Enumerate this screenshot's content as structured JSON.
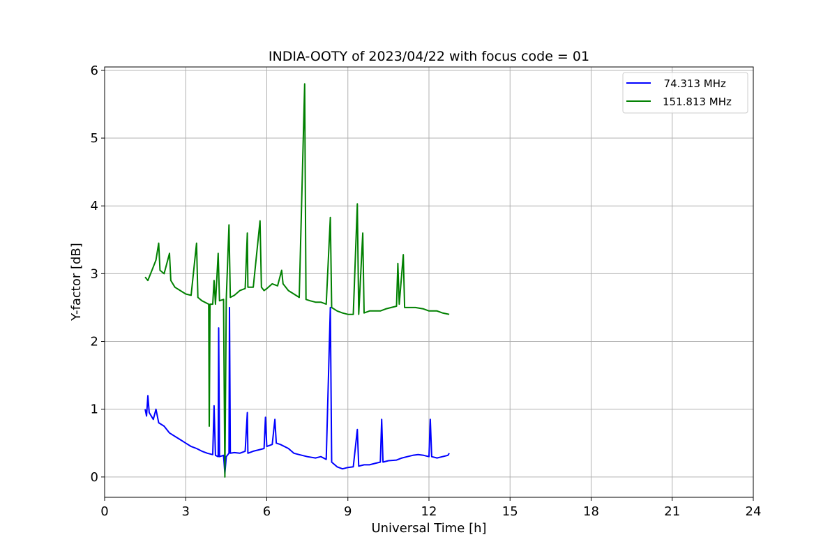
{
  "chart_data": {
    "type": "line",
    "title": "INDIA-OOTY of 2023/04/22 with focus code = 01",
    "xlabel": "Universal Time [h]",
    "ylabel": "Y-factor [dB]",
    "xlim": [
      0,
      24
    ],
    "ylim": [
      -0.3,
      6.05
    ],
    "xticks": [
      0,
      3,
      6,
      9,
      12,
      15,
      18,
      21,
      24
    ],
    "yticks": [
      0,
      1,
      2,
      3,
      4,
      5,
      6
    ],
    "grid": true,
    "legend_position": "top-right",
    "series": [
      {
        "name": "  74.313 MHz",
        "color": "#0000ff",
        "points": [
          [
            1.5,
            1.0
          ],
          [
            1.55,
            0.9
          ],
          [
            1.6,
            1.2
          ],
          [
            1.65,
            0.95
          ],
          [
            1.8,
            0.85
          ],
          [
            1.9,
            1.0
          ],
          [
            2.0,
            0.8
          ],
          [
            2.2,
            0.75
          ],
          [
            2.4,
            0.65
          ],
          [
            2.6,
            0.6
          ],
          [
            2.8,
            0.55
          ],
          [
            3.0,
            0.5
          ],
          [
            3.2,
            0.45
          ],
          [
            3.4,
            0.42
          ],
          [
            3.6,
            0.38
          ],
          [
            3.8,
            0.35
          ],
          [
            4.0,
            0.33
          ],
          [
            4.05,
            1.05
          ],
          [
            4.1,
            0.32
          ],
          [
            4.2,
            0.3
          ],
          [
            4.22,
            2.2
          ],
          [
            4.25,
            0.3
          ],
          [
            4.4,
            0.32
          ],
          [
            4.45,
            0.05
          ],
          [
            4.5,
            0.3
          ],
          [
            4.6,
            0.35
          ],
          [
            4.62,
            2.5
          ],
          [
            4.65,
            0.35
          ],
          [
            4.8,
            0.36
          ],
          [
            5.0,
            0.35
          ],
          [
            5.2,
            0.38
          ],
          [
            5.28,
            0.95
          ],
          [
            5.3,
            0.35
          ],
          [
            5.5,
            0.38
          ],
          [
            5.7,
            0.4
          ],
          [
            5.9,
            0.42
          ],
          [
            5.95,
            0.88
          ],
          [
            6.0,
            0.45
          ],
          [
            6.2,
            0.48
          ],
          [
            6.3,
            0.85
          ],
          [
            6.35,
            0.5
          ],
          [
            6.5,
            0.48
          ],
          [
            6.8,
            0.42
          ],
          [
            7.0,
            0.35
          ],
          [
            7.2,
            0.33
          ],
          [
            7.5,
            0.3
          ],
          [
            7.8,
            0.28
          ],
          [
            8.0,
            0.3
          ],
          [
            8.2,
            0.26
          ],
          [
            8.35,
            2.5
          ],
          [
            8.4,
            0.22
          ],
          [
            8.6,
            0.15
          ],
          [
            8.8,
            0.12
          ],
          [
            9.0,
            0.14
          ],
          [
            9.2,
            0.15
          ],
          [
            9.35,
            0.7
          ],
          [
            9.4,
            0.16
          ],
          [
            9.6,
            0.18
          ],
          [
            9.8,
            0.18
          ],
          [
            10.0,
            0.2
          ],
          [
            10.2,
            0.22
          ],
          [
            10.25,
            0.85
          ],
          [
            10.3,
            0.22
          ],
          [
            10.5,
            0.24
          ],
          [
            10.8,
            0.25
          ],
          [
            11.0,
            0.28
          ],
          [
            11.2,
            0.3
          ],
          [
            11.4,
            0.32
          ],
          [
            11.6,
            0.33
          ],
          [
            11.8,
            0.32
          ],
          [
            12.0,
            0.3
          ],
          [
            12.05,
            0.85
          ],
          [
            12.1,
            0.3
          ],
          [
            12.3,
            0.28
          ],
          [
            12.5,
            0.3
          ],
          [
            12.7,
            0.32
          ],
          [
            12.75,
            0.35
          ]
        ]
      },
      {
        "name": "151.813 MHz",
        "color": "#008000",
        "points": [
          [
            1.5,
            2.95
          ],
          [
            1.6,
            2.9
          ],
          [
            1.8,
            3.1
          ],
          [
            1.9,
            3.2
          ],
          [
            2.0,
            3.45
          ],
          [
            2.05,
            3.05
          ],
          [
            2.2,
            3.0
          ],
          [
            2.4,
            3.3
          ],
          [
            2.45,
            2.9
          ],
          [
            2.6,
            2.8
          ],
          [
            2.8,
            2.75
          ],
          [
            3.0,
            2.7
          ],
          [
            3.2,
            2.68
          ],
          [
            3.4,
            3.45
          ],
          [
            3.45,
            2.65
          ],
          [
            3.6,
            2.6
          ],
          [
            3.85,
            2.55
          ],
          [
            3.87,
            0.75
          ],
          [
            3.9,
            2.55
          ],
          [
            4.0,
            2.55
          ],
          [
            4.05,
            2.9
          ],
          [
            4.1,
            2.55
          ],
          [
            4.2,
            3.3
          ],
          [
            4.25,
            2.6
          ],
          [
            4.4,
            2.62
          ],
          [
            4.45,
            0.0
          ],
          [
            4.5,
            2.62
          ],
          [
            4.6,
            3.72
          ],
          [
            4.65,
            2.65
          ],
          [
            4.8,
            2.68
          ],
          [
            5.0,
            2.75
          ],
          [
            5.2,
            2.78
          ],
          [
            5.28,
            3.6
          ],
          [
            5.3,
            2.8
          ],
          [
            5.5,
            2.8
          ],
          [
            5.75,
            3.78
          ],
          [
            5.8,
            2.8
          ],
          [
            5.9,
            2.75
          ],
          [
            6.0,
            2.78
          ],
          [
            6.2,
            2.85
          ],
          [
            6.4,
            2.82
          ],
          [
            6.55,
            3.05
          ],
          [
            6.6,
            2.85
          ],
          [
            6.8,
            2.75
          ],
          [
            7.0,
            2.7
          ],
          [
            7.2,
            2.65
          ],
          [
            7.4,
            5.8
          ],
          [
            7.45,
            2.62
          ],
          [
            7.6,
            2.6
          ],
          [
            7.8,
            2.58
          ],
          [
            8.0,
            2.58
          ],
          [
            8.2,
            2.55
          ],
          [
            8.35,
            3.83
          ],
          [
            8.4,
            2.5
          ],
          [
            8.6,
            2.45
          ],
          [
            8.8,
            2.42
          ],
          [
            9.0,
            2.4
          ],
          [
            9.2,
            2.4
          ],
          [
            9.35,
            4.03
          ],
          [
            9.4,
            2.4
          ],
          [
            9.55,
            3.6
          ],
          [
            9.6,
            2.42
          ],
          [
            9.8,
            2.45
          ],
          [
            10.0,
            2.45
          ],
          [
            10.2,
            2.45
          ],
          [
            10.4,
            2.48
          ],
          [
            10.6,
            2.5
          ],
          [
            10.8,
            2.52
          ],
          [
            10.85,
            3.15
          ],
          [
            10.9,
            2.55
          ],
          [
            11.05,
            3.28
          ],
          [
            11.1,
            2.5
          ],
          [
            11.3,
            2.5
          ],
          [
            11.5,
            2.5
          ],
          [
            11.8,
            2.48
          ],
          [
            12.0,
            2.45
          ],
          [
            12.3,
            2.45
          ],
          [
            12.5,
            2.42
          ],
          [
            12.75,
            2.4
          ]
        ]
      }
    ]
  }
}
